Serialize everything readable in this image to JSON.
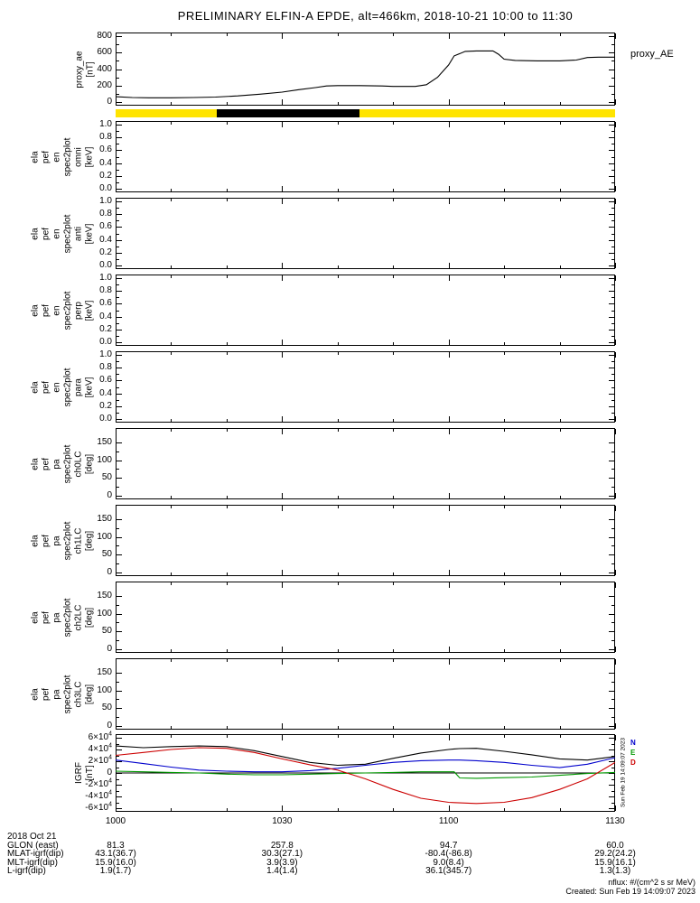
{
  "title": "PRELIMINARY ELFIN-A EPDE, alt=466km, 2018-10-21 10:00 to 11:30",
  "footer": {
    "nflux": "nflux: #/(cm^2 s sr MeV)",
    "created": "Created: Sun Feb 19 14:09:07 2023"
  },
  "side_stamp": "Sun Feb 19 14:09:07 2023",
  "x_axis": {
    "ticks": [
      "1000",
      "1030",
      "1100",
      "1130"
    ],
    "tick_minutes": [
      0,
      30,
      60,
      90
    ],
    "minor_minutes": [
      10,
      20,
      40,
      50,
      70,
      80
    ]
  },
  "science_zone_bar": {
    "bar_color": "#ffe400",
    "segment_color": "#000000",
    "segment_minutes": [
      18.2,
      43.9
    ]
  },
  "igrf_right_labels": [
    {
      "text": "N",
      "color": "#0000cc"
    },
    {
      "text": "E",
      "color": "#009900"
    },
    {
      "text": "D",
      "color": "#cc0000"
    }
  ],
  "panels": [
    {
      "id": "proxy_ae",
      "kind": "line",
      "right_label": "proxy_AE",
      "ylabel_lines": [
        "proxy_ae",
        "[nT]"
      ],
      "vmin": 0,
      "vmax": 800,
      "yticks": [
        [
          800,
          "800",
          null
        ],
        [
          600,
          "600",
          null
        ],
        [
          400,
          "400",
          null
        ],
        [
          200,
          "200",
          null
        ],
        [
          0,
          "0",
          null
        ]
      ]
    },
    {
      "id": "en_omni",
      "kind": "energy-spectrogram-empty",
      "ylabel_lines": [
        "ela",
        "pef",
        "en",
        "spec2plot",
        "omni",
        "[keV]"
      ],
      "vmin": 0,
      "vmax": 1,
      "yticks": [
        [
          1.0,
          "1.0",
          null
        ],
        [
          0.8,
          "0.8",
          null
        ],
        [
          0.6,
          "0.6",
          null
        ],
        [
          0.4,
          "0.4",
          null
        ],
        [
          0.2,
          "0.2",
          null
        ],
        [
          0.0,
          "0.0",
          null
        ]
      ]
    },
    {
      "id": "en_anti",
      "kind": "energy-spectrogram-empty",
      "ylabel_lines": [
        "ela",
        "pef",
        "en",
        "spec2plot",
        "anti",
        "[keV]"
      ],
      "vmin": 0,
      "vmax": 1,
      "yticks": [
        [
          1.0,
          "1.0",
          null
        ],
        [
          0.8,
          "0.8",
          null
        ],
        [
          0.6,
          "0.6",
          null
        ],
        [
          0.4,
          "0.4",
          null
        ],
        [
          0.2,
          "0.2",
          null
        ],
        [
          0.0,
          "0.0",
          null
        ]
      ]
    },
    {
      "id": "en_perp",
      "kind": "energy-spectrogram-empty",
      "ylabel_lines": [
        "ela",
        "pef",
        "en",
        "spec2plot",
        "perp",
        "[keV]"
      ],
      "vmin": 0,
      "vmax": 1,
      "yticks": [
        [
          1.0,
          "1.0",
          null
        ],
        [
          0.8,
          "0.8",
          null
        ],
        [
          0.6,
          "0.6",
          null
        ],
        [
          0.4,
          "0.4",
          null
        ],
        [
          0.2,
          "0.2",
          null
        ],
        [
          0.0,
          "0.0",
          null
        ]
      ]
    },
    {
      "id": "en_para",
      "kind": "energy-spectrogram-empty",
      "ylabel_lines": [
        "ela",
        "pef",
        "en",
        "spec2plot",
        "para",
        "[keV]"
      ],
      "vmin": 0,
      "vmax": 1,
      "yticks": [
        [
          1.0,
          "1.0",
          null
        ],
        [
          0.8,
          "0.8",
          null
        ],
        [
          0.6,
          "0.6",
          null
        ],
        [
          0.4,
          "0.4",
          null
        ],
        [
          0.2,
          "0.2",
          null
        ],
        [
          0.0,
          "0.0",
          null
        ]
      ]
    },
    {
      "id": "pa_ch0lc",
      "kind": "pitch-angle-spectrogram-empty",
      "ylabel_lines": [
        "ela",
        "pef",
        "pa",
        "spec2plot",
        "ch0LC",
        "[deg]"
      ],
      "vmin": 0,
      "vmax": 180,
      "yticks": [
        [
          150,
          "150",
          null
        ],
        [
          100,
          "100",
          null
        ],
        [
          50,
          "50",
          null
        ],
        [
          0,
          "0",
          null
        ]
      ]
    },
    {
      "id": "pa_ch1lc",
      "kind": "pitch-angle-spectrogram-empty",
      "ylabel_lines": [
        "ela",
        "pef",
        "pa",
        "spec2plot",
        "ch1LC",
        "[deg]"
      ],
      "vmin": 0,
      "vmax": 180,
      "yticks": [
        [
          150,
          "150",
          null
        ],
        [
          100,
          "100",
          null
        ],
        [
          50,
          "50",
          null
        ],
        [
          0,
          "0",
          null
        ]
      ]
    },
    {
      "id": "pa_ch2lc",
      "kind": "pitch-angle-spectrogram-empty",
      "ylabel_lines": [
        "ela",
        "pef",
        "pa",
        "spec2plot",
        "ch2LC",
        "[deg]"
      ],
      "vmin": 0,
      "vmax": 180,
      "yticks": [
        [
          150,
          "150",
          null
        ],
        [
          100,
          "100",
          null
        ],
        [
          50,
          "50",
          null
        ],
        [
          0,
          "0",
          null
        ]
      ]
    },
    {
      "id": "pa_ch3lc",
      "kind": "pitch-angle-spectrogram-empty",
      "ylabel_lines": [
        "ela",
        "pef",
        "pa",
        "spec2plot",
        "ch3LC",
        "[deg]"
      ],
      "vmin": 0,
      "vmax": 180,
      "yticks": [
        [
          150,
          "150",
          null
        ],
        [
          100,
          "100",
          null
        ],
        [
          50,
          "50",
          null
        ],
        [
          0,
          "0",
          null
        ]
      ]
    },
    {
      "id": "igrf",
      "kind": "line",
      "ylabel_lines": [
        "IGRF",
        "[nT]"
      ],
      "vmin": -60000,
      "vmax": 60000,
      "yticks": [
        [
          60000,
          "6×10",
          "4"
        ],
        [
          40000,
          "4×10",
          "4"
        ],
        [
          20000,
          "2×10",
          "4"
        ],
        [
          0,
          "0",
          null
        ],
        [
          -20000,
          "-2×10",
          "4"
        ],
        [
          -40000,
          "-4×10",
          "4"
        ],
        [
          -60000,
          "-6×10",
          "4"
        ]
      ]
    }
  ],
  "chart_data": [
    {
      "type": "line",
      "panel": "proxy_ae",
      "title": "proxy_AE",
      "ylabel": "proxy_ae [nT]",
      "ylim": [
        0,
        800
      ],
      "x_tick_labels": [
        "1000",
        "1030",
        "1100",
        "1130"
      ],
      "x_minutes": [
        0,
        3,
        6,
        10,
        14,
        18,
        22,
        26,
        30,
        33,
        36,
        38,
        40,
        44,
        48,
        50,
        54,
        56,
        58,
        60,
        61,
        63,
        65,
        68,
        69,
        70,
        72,
        76,
        80,
        83,
        85,
        87,
        90
      ],
      "values": [
        65,
        55,
        52,
        52,
        55,
        60,
        75,
        95,
        120,
        150,
        175,
        195,
        200,
        200,
        195,
        190,
        190,
        210,
        300,
        450,
        560,
        615,
        620,
        620,
        580,
        520,
        505,
        500,
        500,
        510,
        540,
        545,
        545
      ]
    },
    {
      "type": "line",
      "panel": "igrf",
      "title": "IGRF",
      "ylabel": "IGRF [nT]",
      "ylim": [
        -60000,
        60000
      ],
      "x_minutes": [
        0,
        5,
        10,
        15,
        20,
        25,
        30,
        35,
        40,
        45,
        50,
        55,
        60,
        61,
        62,
        65,
        70,
        75,
        80,
        85,
        90
      ],
      "series": [
        {
          "name": "Bmag",
          "color": "#000000",
          "values": [
            46000,
            43000,
            45000,
            46000,
            45000,
            38000,
            28000,
            18000,
            13000,
            15000,
            25000,
            34000,
            40000,
            41000,
            41500,
            42000,
            37000,
            31000,
            24000,
            22000,
            28000
          ]
        },
        {
          "name": "N",
          "color": "#0000cc",
          "values": [
            22000,
            16000,
            10000,
            5000,
            3000,
            2000,
            2000,
            4000,
            8000,
            13000,
            18000,
            21000,
            22000,
            22000,
            22000,
            21000,
            18000,
            13000,
            9000,
            15000,
            26000
          ]
        },
        {
          "name": "E",
          "color": "#009900",
          "values": [
            3000,
            2000,
            1000,
            0,
            -2000,
            -3000,
            -3000,
            -2000,
            -1000,
            0,
            1000,
            2000,
            2000,
            2000,
            -8500,
            -9000,
            -8000,
            -7000,
            -4000,
            -1000,
            1000
          ]
        },
        {
          "name": "D",
          "color": "#cc0000",
          "values": [
            30000,
            35000,
            40000,
            43000,
            42000,
            35000,
            24000,
            14000,
            5000,
            -10000,
            -28000,
            -43000,
            -50000,
            -50500,
            -51000,
            -52000,
            -50000,
            -42000,
            -28000,
            -10000,
            18000
          ]
        }
      ]
    }
  ],
  "bottom_rows": [
    {
      "label": "2018 Oct 21",
      "values": [
        "",
        "",
        "",
        ""
      ]
    },
    {
      "label": "GLON (east)",
      "values": [
        "81.3",
        "257.8",
        "94.7",
        "60.0"
      ]
    },
    {
      "label": "MLAT-igrf(dip)",
      "values": [
        "43.1(36.7)",
        "30.3(27.1)",
        "-80.4(-86.8)",
        "29.2(24.2)"
      ]
    },
    {
      "label": "MLT-igrf(dip)",
      "values": [
        "15.9(16.0)",
        "3.9(3.9)",
        "9.0(8.4)",
        "15.9(16.1)"
      ]
    },
    {
      "label": "L-igrf(dip)",
      "values": [
        "1.9(1.7)",
        "1.4(1.4)",
        "36.1(345.7)",
        "1.3(1.3)"
      ]
    }
  ]
}
